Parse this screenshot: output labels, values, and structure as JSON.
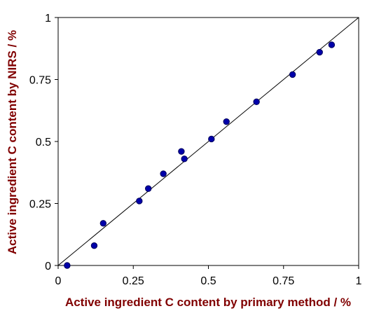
{
  "chart_data": {
    "type": "scatter",
    "title": "",
    "xlabel": "Active ingredient C content by primary method / %",
    "ylabel": "Active ingredient C content by NIRS / %",
    "xlim": [
      0,
      1
    ],
    "ylim": [
      0,
      1
    ],
    "x_ticks": [
      "0",
      "0.25",
      "0.5",
      "0.75",
      "1"
    ],
    "y_ticks": [
      "0",
      "0.25",
      "0.5",
      "0.75",
      "1"
    ],
    "grid": false,
    "legend": "none",
    "reference_line": {
      "type": "identity",
      "from": [
        0,
        0
      ],
      "to": [
        1,
        1
      ]
    },
    "series": [
      {
        "points": [
          {
            "x": 0.03,
            "y": 0.0
          },
          {
            "x": 0.12,
            "y": 0.08
          },
          {
            "x": 0.15,
            "y": 0.17
          },
          {
            "x": 0.27,
            "y": 0.26
          },
          {
            "x": 0.3,
            "y": 0.31
          },
          {
            "x": 0.35,
            "y": 0.37
          },
          {
            "x": 0.41,
            "y": 0.46
          },
          {
            "x": 0.42,
            "y": 0.43
          },
          {
            "x": 0.51,
            "y": 0.51
          },
          {
            "x": 0.56,
            "y": 0.58
          },
          {
            "x": 0.66,
            "y": 0.66
          },
          {
            "x": 0.78,
            "y": 0.77
          },
          {
            "x": 0.87,
            "y": 0.86
          },
          {
            "x": 0.91,
            "y": 0.89
          }
        ]
      }
    ],
    "colors": {
      "marker_fill": "#0000aa",
      "marker_stroke": "#00005a",
      "axis_title": "#800000",
      "frame": "#000000"
    }
  }
}
